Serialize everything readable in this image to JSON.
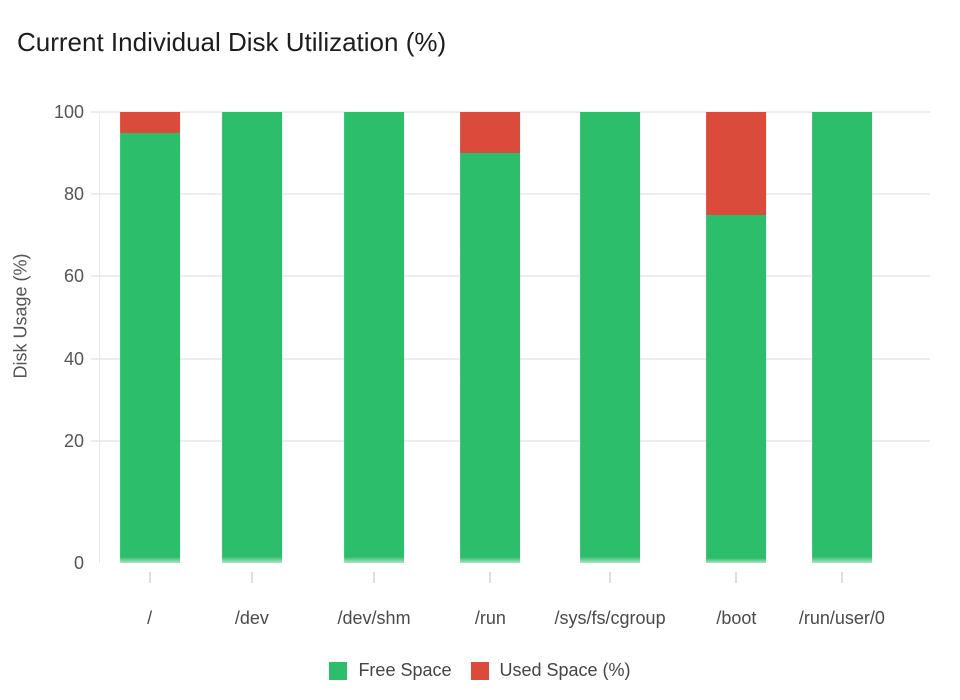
{
  "page": {
    "background": "#ffffff"
  },
  "chart_data": {
    "type": "bar",
    "stacked": true,
    "title": "Current Individual Disk Utilization (%)",
    "ylabel": "Disk Usage (%)",
    "xlabel": "",
    "categories": [
      "/",
      "/dev",
      "/dev/shm",
      "/run",
      "/sys/fs/cgroup",
      "/boot",
      "/run/user/0"
    ],
    "series": [
      {
        "name": "Free Space",
        "color": "#2dbe6b",
        "values": [
          95,
          100,
          100,
          90,
          100,
          75,
          100
        ]
      },
      {
        "name": "Used Space (%)",
        "color": "#db4b3c",
        "values": [
          5,
          0,
          0,
          10,
          0,
          25,
          0
        ]
      }
    ],
    "yticks": [
      100,
      80,
      60,
      40,
      20,
      0
    ],
    "ylim": [
      0,
      100
    ],
    "grid": true,
    "legend_position": "bottom",
    "layout": {
      "x_centers_pct": [
        6.1,
        18.4,
        33.1,
        47.1,
        61.5,
        76.7,
        89.4
      ],
      "bar_width_pct": 7.2,
      "grid_color": "#ededed",
      "axis_color": "#e8e8e8",
      "tick_text_color": "#555555",
      "category_text_color": "#4a4a4a",
      "legend_text_color": "#454545",
      "title_color": "#1d1d1d"
    }
  }
}
